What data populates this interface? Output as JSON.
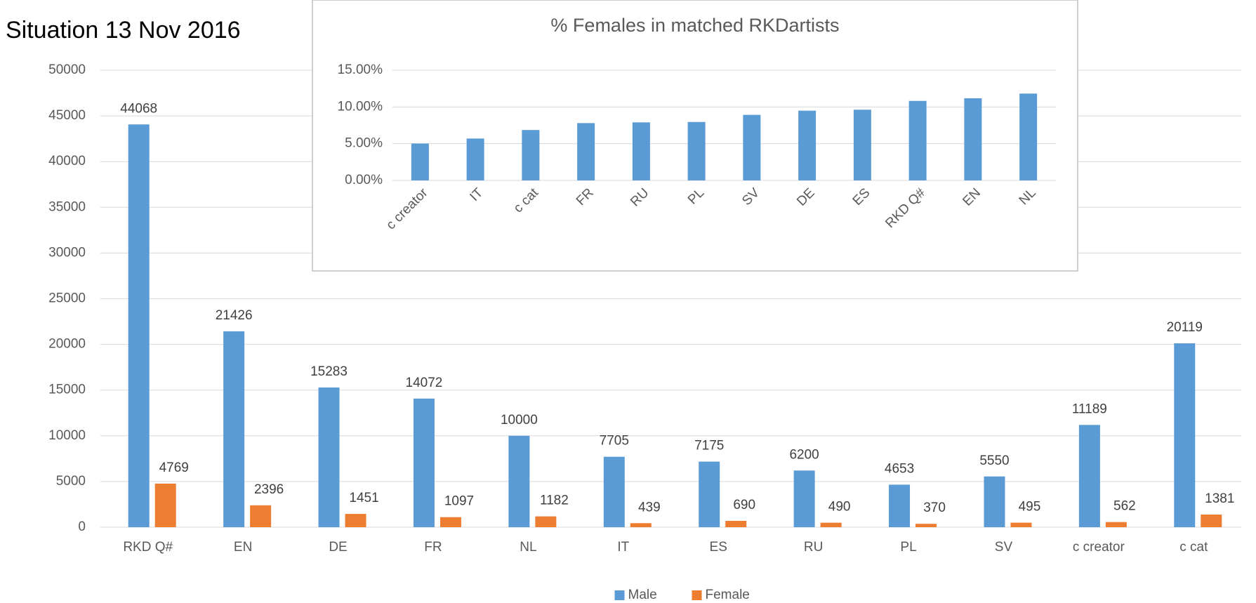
{
  "chart_data": [
    {
      "type": "bar",
      "title": "Situation 13 Nov 2016",
      "categories": [
        "RKD Q#",
        "EN",
        "DE",
        "FR",
        "NL",
        "IT",
        "ES",
        "RU",
        "PL",
        "SV",
        "c creator",
        "c cat"
      ],
      "series": [
        {
          "name": "Male",
          "color": "#5b9bd5",
          "values": [
            44068,
            21426,
            15283,
            14072,
            10000,
            7705,
            7175,
            6200,
            4653,
            5550,
            11189,
            20119
          ]
        },
        {
          "name": "Female",
          "color": "#ed7d31",
          "values": [
            4769,
            2396,
            1451,
            1097,
            1182,
            439,
            690,
            490,
            370,
            495,
            562,
            1381
          ]
        }
      ],
      "ylim": [
        0,
        50000
      ],
      "yticks": [
        0,
        5000,
        10000,
        15000,
        20000,
        25000,
        30000,
        35000,
        40000,
        45000,
        50000
      ],
      "grid": true,
      "data_labels": true,
      "legend": "bottom"
    },
    {
      "type": "bar",
      "title": "% Females in matched RKDartists",
      "categories": [
        "c creator",
        "IT",
        "c cat",
        "FR",
        "RU",
        "PL",
        "SV",
        "DE",
        "ES",
        "RKD Q#",
        "EN",
        "NL"
      ],
      "values": [
        5.02,
        5.7,
        6.86,
        7.8,
        7.9,
        7.95,
        8.92,
        9.49,
        9.62,
        10.82,
        11.18,
        11.82
      ],
      "color": "#5b9bd5",
      "ylim": [
        0,
        15
      ],
      "yticks": [
        {
          "value": 0,
          "label": "0.00%"
        },
        {
          "value": 5,
          "label": "5.00%"
        },
        {
          "value": 10,
          "label": "10.00%"
        },
        {
          "value": 15,
          "label": "15.00%"
        }
      ],
      "grid": true
    }
  ]
}
